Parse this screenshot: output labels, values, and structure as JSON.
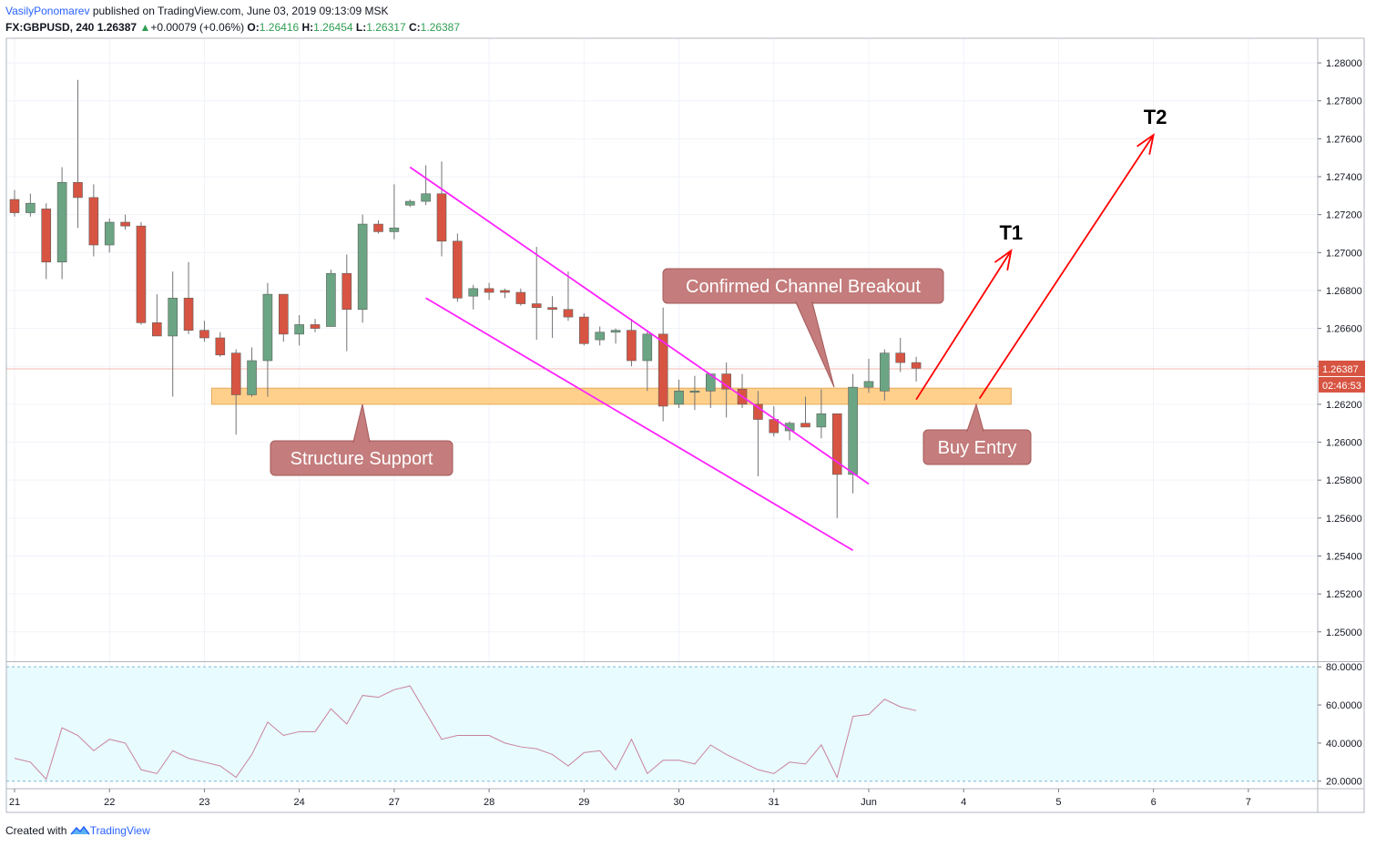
{
  "header": {
    "author": "VasilyPonomarev",
    "published_text": "published on TradingView.com, June 03, 2019 09:13:09 MSK"
  },
  "symbol_line": {
    "symbol": "FX:GBPUSD, 240",
    "last": "1.26387",
    "change": "+0.00079 (+0.06%)",
    "o_label": "O:",
    "o": "1.26416",
    "h_label": "H:",
    "h": "1.26454",
    "l_label": "L:",
    "l": "1.26317",
    "c_label": "C:",
    "c": "1.26387"
  },
  "footer": {
    "created_with": "Created with",
    "brand": "TradingView"
  },
  "colors": {
    "up": "#6ba583",
    "down": "#d75442",
    "channel": "#ff22ff",
    "arrow": "#ff0000",
    "zone_fill": "#ffcc80",
    "callout": "#c47c7c",
    "rsi_line": "#c9829d",
    "rsi_bg": "#e8fbff"
  },
  "chart_data": {
    "type": "candlestick",
    "symbol": "FX:GBPUSD",
    "timeframe": "240",
    "price_ylim": [
      1.2485,
      1.2813
    ],
    "price_ticks": [
      "1.28000",
      "1.27800",
      "1.27600",
      "1.27400",
      "1.27200",
      "1.27000",
      "1.26800",
      "1.26600",
      "1.26400",
      "1.26200",
      "1.26000",
      "1.25800",
      "1.25600",
      "1.25400",
      "1.25200",
      "1.25000"
    ],
    "last_price_label": "1.26387",
    "countdown_label": "02:46:53",
    "x_labels": [
      {
        "i": 0,
        "t": "21"
      },
      {
        "i": 6,
        "t": "22"
      },
      {
        "i": 12,
        "t": "23"
      },
      {
        "i": 18,
        "t": "24"
      },
      {
        "i": 24,
        "t": "27"
      },
      {
        "i": 30,
        "t": "28"
      },
      {
        "i": 36,
        "t": "29"
      },
      {
        "i": 42,
        "t": "30"
      },
      {
        "i": 48,
        "t": "31"
      },
      {
        "i": 54,
        "t": "Jun"
      },
      {
        "i": 60,
        "t": "4"
      },
      {
        "i": 66,
        "t": "5"
      },
      {
        "i": 72,
        "t": "6"
      },
      {
        "i": 78,
        "t": "7"
      }
    ],
    "candles": [
      [
        1.2728,
        1.2733,
        1.2719,
        1.2721
      ],
      [
        1.2721,
        1.2731,
        1.2719,
        1.2726
      ],
      [
        1.2723,
        1.2726,
        1.2686,
        1.2695
      ],
      [
        1.2695,
        1.2745,
        1.2686,
        1.2737
      ],
      [
        1.2737,
        1.2791,
        1.2713,
        1.2729
      ],
      [
        1.2729,
        1.2736,
        1.2698,
        1.2704
      ],
      [
        1.2704,
        1.2718,
        1.27,
        1.2716
      ],
      [
        1.2716,
        1.272,
        1.2712,
        1.2714
      ],
      [
        1.2714,
        1.2716,
        1.2662,
        1.2663
      ],
      [
        1.2663,
        1.2678,
        1.2656,
        1.2656
      ],
      [
        1.2656,
        1.269,
        1.2624,
        1.2676
      ],
      [
        1.2676,
        1.2695,
        1.2657,
        1.2659
      ],
      [
        1.2659,
        1.2664,
        1.2653,
        1.2655
      ],
      [
        1.2655,
        1.2658,
        1.2645,
        1.2646
      ],
      [
        1.2647,
        1.2649,
        1.2604,
        1.2625
      ],
      [
        1.2625,
        1.265,
        1.2624,
        1.2643
      ],
      [
        1.2643,
        1.2684,
        1.2624,
        1.2678
      ],
      [
        1.2678,
        1.2678,
        1.2653,
        1.2657
      ],
      [
        1.2657,
        1.2667,
        1.2651,
        1.2662
      ],
      [
        1.2662,
        1.2665,
        1.2658,
        1.266
      ],
      [
        1.2661,
        1.2691,
        1.2661,
        1.2689
      ],
      [
        1.2689,
        1.2699,
        1.2648,
        1.267
      ],
      [
        1.267,
        1.272,
        1.2663,
        1.2715
      ],
      [
        1.2715,
        1.2717,
        1.271,
        1.2711
      ],
      [
        1.2711,
        1.2736,
        1.2707,
        1.2713
      ],
      [
        1.2725,
        1.2728,
        1.2724,
        1.2727
      ],
      [
        1.2727,
        1.2746,
        1.2725,
        1.2731
      ],
      [
        1.2731,
        1.2748,
        1.2698,
        1.2706
      ],
      [
        1.2706,
        1.271,
        1.2674,
        1.2676
      ],
      [
        1.2677,
        1.2683,
        1.267,
        1.2681
      ],
      [
        1.2681,
        1.2684,
        1.2675,
        1.2679
      ],
      [
        1.268,
        1.2681,
        1.2676,
        1.2679
      ],
      [
        1.2679,
        1.2681,
        1.2672,
        1.2673
      ],
      [
        1.2673,
        1.2703,
        1.2654,
        1.2671
      ],
      [
        1.2671,
        1.2677,
        1.2655,
        1.267
      ],
      [
        1.267,
        1.269,
        1.2664,
        1.2666
      ],
      [
        1.2666,
        1.2668,
        1.2651,
        1.2652
      ],
      [
        1.2654,
        1.2661,
        1.2651,
        1.2658
      ],
      [
        1.2658,
        1.266,
        1.2652,
        1.2659
      ],
      [
        1.2659,
        1.2665,
        1.264,
        1.2643
      ],
      [
        1.2643,
        1.2659,
        1.2627,
        1.2657
      ],
      [
        1.2657,
        1.2671,
        1.2611,
        1.2619
      ],
      [
        1.262,
        1.2633,
        1.2618,
        1.2627
      ],
      [
        1.2627,
        1.2635,
        1.2617,
        1.2627
      ],
      [
        1.2627,
        1.2636,
        1.2618,
        1.2636
      ],
      [
        1.2636,
        1.2642,
        1.2613,
        1.2628
      ],
      [
        1.2628,
        1.2636,
        1.2618,
        1.262
      ],
      [
        1.262,
        1.2627,
        1.2582,
        1.2612
      ],
      [
        1.2612,
        1.2619,
        1.2603,
        1.2605
      ],
      [
        1.2606,
        1.2611,
        1.2601,
        1.261
      ],
      [
        1.261,
        1.2624,
        1.2608,
        1.2608
      ],
      [
        1.2608,
        1.2628,
        1.2602,
        1.2615
      ],
      [
        1.2615,
        1.2615,
        1.256,
        1.2583
      ],
      [
        1.2583,
        1.2636,
        1.2573,
        1.2629
      ],
      [
        1.2629,
        1.2644,
        1.2626,
        1.2632
      ],
      [
        1.2627,
        1.2649,
        1.2622,
        1.2647
      ],
      [
        1.2647,
        1.2655,
        1.2637,
        1.2642
      ],
      [
        1.2642,
        1.2645,
        1.2632,
        1.2639
      ]
    ],
    "rsi": {
      "ylim": [
        17,
        82
      ],
      "levels": [
        80,
        20
      ],
      "ticks": [
        "80.0000",
        "60.0000",
        "40.0000",
        "20.0000"
      ],
      "values": [
        32,
        30,
        21,
        48,
        44,
        36,
        42,
        40,
        26,
        24,
        36,
        32,
        30,
        28,
        22,
        34,
        51,
        44,
        46,
        46,
        58,
        50,
        65,
        64,
        68,
        70,
        56,
        42,
        44,
        44,
        44,
        40,
        38,
        37,
        34,
        28,
        35,
        36,
        26,
        42,
        24,
        31,
        31,
        29,
        39,
        34,
        30,
        26,
        24,
        30,
        29,
        39,
        22,
        54,
        55,
        63,
        59,
        57
      ]
    },
    "channel": [
      {
        "x1": "2019-05-27 04:00",
        "y1": 1.2745,
        "x2": "2019-06-01",
        "y2": 1.2578
      },
      {
        "x1": "2019-05-27 08:00",
        "y1": 1.2676,
        "x2": "2019-05-31 20:00",
        "y2": 1.2543
      }
    ],
    "support_zone": {
      "x1": "2019-05-23",
      "x2": "2019-06-04 12:00",
      "top": 1.26285,
      "bottom": 1.262
    },
    "arrows": [
      {
        "label": "T1",
        "x1": "2019-06-03 12:00",
        "y1": 1.26225,
        "x2": "2019-06-04 12:00",
        "y2": 1.2701
      },
      {
        "label": "T2",
        "x1": "2019-06-04 04:00",
        "y1": 1.2623,
        "x2": "2019-06-06",
        "y2": 1.2762
      }
    ],
    "callouts": [
      {
        "text": "Structure Support",
        "anchor_price": 1.262
      },
      {
        "text": "Confirmed Channel Breakout",
        "anchor_price": 1.2629
      },
      {
        "text": "Buy Entry",
        "anchor_price": 1.262
      }
    ]
  }
}
